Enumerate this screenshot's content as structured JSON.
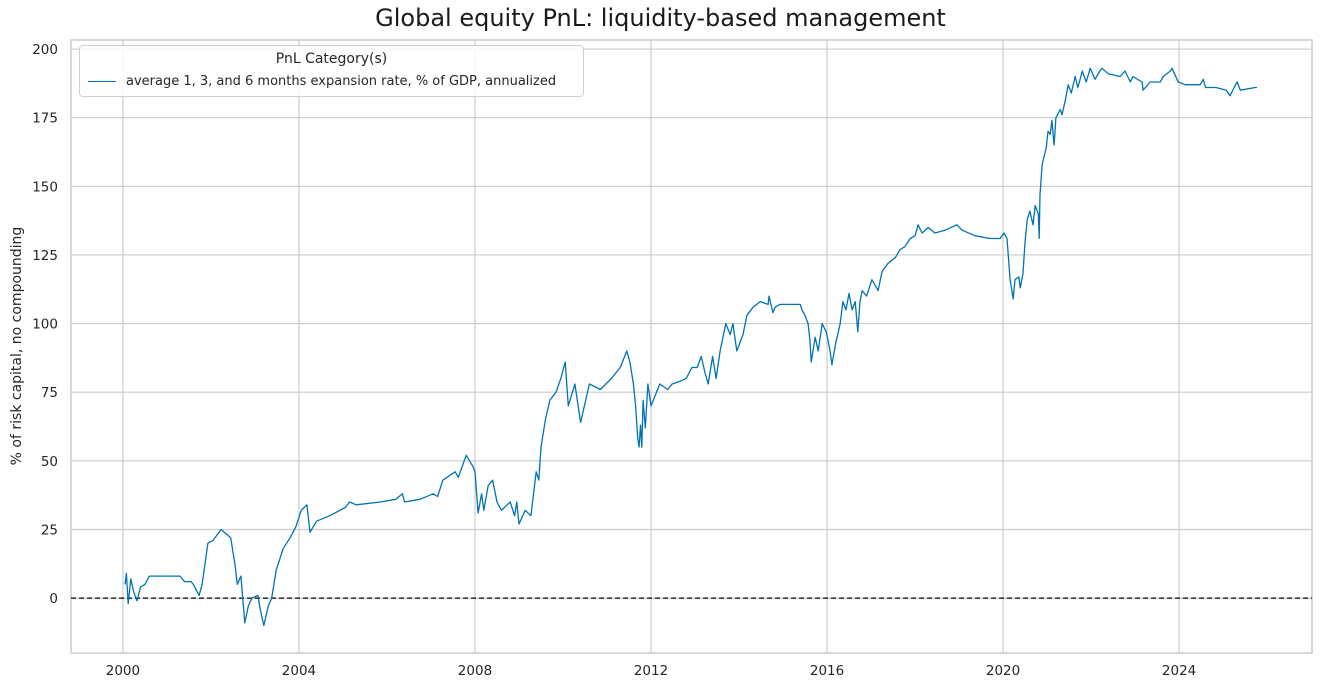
{
  "chart_data": {
    "type": "line",
    "title": "Global equity PnL: liquidity-based management",
    "xlabel": "",
    "ylabel": "% of risk capital, no compounding",
    "xlim": [
      1998.82,
      2027.02
    ],
    "ylim": [
      -20,
      203.3
    ],
    "x_ticks": [
      2000,
      2004,
      2008,
      2012,
      2016,
      2020,
      2024
    ],
    "y_ticks": [
      0,
      25,
      50,
      75,
      100,
      125,
      150,
      175,
      200
    ],
    "grid": true,
    "reference_line": {
      "y": 0,
      "style": "dashed",
      "color": "#000000"
    },
    "legend": {
      "title": "PnL Category(s)",
      "placement": "top-left"
    },
    "series": [
      {
        "name": "average 1, 3, and 6 months expansion rate, % of GDP, annualized",
        "color": "#0173b2",
        "points": [
          [
            2000.05,
            5
          ],
          [
            2000.08,
            9
          ],
          [
            2000.12,
            -2
          ],
          [
            2000.18,
            7
          ],
          [
            2000.25,
            2
          ],
          [
            2000.32,
            -1
          ],
          [
            2000.4,
            4
          ],
          [
            2000.5,
            5
          ],
          [
            2000.6,
            8
          ],
          [
            2001.0,
            8
          ],
          [
            2001.3,
            8
          ],
          [
            2001.4,
            6
          ],
          [
            2001.55,
            6
          ],
          [
            2001.6,
            5
          ],
          [
            2001.73,
            1
          ],
          [
            2001.8,
            5
          ],
          [
            2001.93,
            20
          ],
          [
            2002.05,
            21
          ],
          [
            2002.23,
            25
          ],
          [
            2002.45,
            22
          ],
          [
            2002.55,
            12
          ],
          [
            2002.6,
            5
          ],
          [
            2002.68,
            8
          ],
          [
            2002.77,
            -9
          ],
          [
            2002.85,
            -3
          ],
          [
            2002.93,
            0
          ],
          [
            2003.07,
            1
          ],
          [
            2003.12,
            -4
          ],
          [
            2003.2,
            -10
          ],
          [
            2003.3,
            -3
          ],
          [
            2003.38,
            0
          ],
          [
            2003.48,
            10
          ],
          [
            2003.64,
            18
          ],
          [
            2003.8,
            22
          ],
          [
            2003.93,
            26
          ],
          [
            2004.05,
            32
          ],
          [
            2004.18,
            34
          ],
          [
            2004.25,
            24
          ],
          [
            2004.4,
            28
          ],
          [
            2004.7,
            30
          ],
          [
            2005.05,
            33
          ],
          [
            2005.15,
            35
          ],
          [
            2005.3,
            34
          ],
          [
            2005.85,
            35
          ],
          [
            2006.2,
            36
          ],
          [
            2006.35,
            38
          ],
          [
            2006.4,
            35
          ],
          [
            2006.75,
            36
          ],
          [
            2007.05,
            38
          ],
          [
            2007.15,
            37
          ],
          [
            2007.27,
            43
          ],
          [
            2007.55,
            46
          ],
          [
            2007.62,
            44
          ],
          [
            2007.8,
            52
          ],
          [
            2007.95,
            48
          ],
          [
            2008.0,
            46
          ],
          [
            2008.07,
            31
          ],
          [
            2008.15,
            38
          ],
          [
            2008.2,
            32
          ],
          [
            2008.3,
            41
          ],
          [
            2008.4,
            43
          ],
          [
            2008.5,
            35
          ],
          [
            2008.6,
            32
          ],
          [
            2008.8,
            35
          ],
          [
            2008.9,
            30
          ],
          [
            2008.95,
            35
          ],
          [
            2009.0,
            27
          ],
          [
            2009.14,
            32
          ],
          [
            2009.27,
            30
          ],
          [
            2009.39,
            46
          ],
          [
            2009.45,
            43
          ],
          [
            2009.5,
            55
          ],
          [
            2009.6,
            65
          ],
          [
            2009.7,
            72
          ],
          [
            2009.84,
            75
          ],
          [
            2009.95,
            80
          ],
          [
            2010.05,
            86
          ],
          [
            2010.12,
            70
          ],
          [
            2010.27,
            78
          ],
          [
            2010.4,
            64
          ],
          [
            2010.6,
            78
          ],
          [
            2010.85,
            76
          ],
          [
            2011.1,
            80
          ],
          [
            2011.3,
            84
          ],
          [
            2011.45,
            90
          ],
          [
            2011.52,
            86
          ],
          [
            2011.6,
            78
          ],
          [
            2011.65,
            70
          ],
          [
            2011.7,
            58
          ],
          [
            2011.73,
            55
          ],
          [
            2011.76,
            63
          ],
          [
            2011.79,
            55
          ],
          [
            2011.82,
            72
          ],
          [
            2011.87,
            62
          ],
          [
            2011.93,
            78
          ],
          [
            2012.0,
            70
          ],
          [
            2012.1,
            74
          ],
          [
            2012.2,
            78
          ],
          [
            2012.38,
            76
          ],
          [
            2012.48,
            78
          ],
          [
            2012.66,
            79
          ],
          [
            2012.8,
            80
          ],
          [
            2012.93,
            84
          ],
          [
            2013.05,
            84
          ],
          [
            2013.14,
            88
          ],
          [
            2013.23,
            82
          ],
          [
            2013.3,
            78
          ],
          [
            2013.4,
            88
          ],
          [
            2013.48,
            80
          ],
          [
            2013.57,
            90
          ],
          [
            2013.7,
            100
          ],
          [
            2013.8,
            96
          ],
          [
            2013.86,
            100
          ],
          [
            2013.95,
            90
          ],
          [
            2014.09,
            96
          ],
          [
            2014.18,
            103
          ],
          [
            2014.32,
            106
          ],
          [
            2014.48,
            108
          ],
          [
            2014.66,
            107
          ],
          [
            2014.68,
            110
          ],
          [
            2014.77,
            104
          ],
          [
            2014.82,
            106
          ],
          [
            2014.93,
            107
          ],
          [
            2015.39,
            107
          ],
          [
            2015.43,
            105
          ],
          [
            2015.5,
            103
          ],
          [
            2015.57,
            100
          ],
          [
            2015.61,
            94
          ],
          [
            2015.64,
            86
          ],
          [
            2015.73,
            95
          ],
          [
            2015.8,
            90
          ],
          [
            2015.89,
            100
          ],
          [
            2015.98,
            97
          ],
          [
            2016.07,
            90
          ],
          [
            2016.11,
            85
          ],
          [
            2016.2,
            93
          ],
          [
            2016.3,
            100
          ],
          [
            2016.36,
            108
          ],
          [
            2016.43,
            105
          ],
          [
            2016.5,
            111
          ],
          [
            2016.57,
            105
          ],
          [
            2016.64,
            108
          ],
          [
            2016.7,
            97
          ],
          [
            2016.75,
            108
          ],
          [
            2016.8,
            112
          ],
          [
            2016.9,
            110
          ],
          [
            2017.02,
            116
          ],
          [
            2017.16,
            112
          ],
          [
            2017.25,
            119
          ],
          [
            2017.39,
            122
          ],
          [
            2017.55,
            124
          ],
          [
            2017.66,
            127
          ],
          [
            2017.77,
            128
          ],
          [
            2017.89,
            131
          ],
          [
            2018.0,
            132
          ],
          [
            2018.07,
            136
          ],
          [
            2018.16,
            133
          ],
          [
            2018.3,
            135
          ],
          [
            2018.45,
            133
          ],
          [
            2018.68,
            134
          ],
          [
            2018.95,
            136
          ],
          [
            2019.07,
            134
          ],
          [
            2019.36,
            132
          ],
          [
            2019.7,
            131
          ],
          [
            2019.93,
            131
          ],
          [
            2020.02,
            133
          ],
          [
            2020.09,
            131
          ],
          [
            2020.16,
            116
          ],
          [
            2020.23,
            109
          ],
          [
            2020.27,
            116
          ],
          [
            2020.36,
            117
          ],
          [
            2020.39,
            113
          ],
          [
            2020.45,
            118
          ],
          [
            2020.5,
            130
          ],
          [
            2020.55,
            138
          ],
          [
            2020.61,
            141
          ],
          [
            2020.68,
            136
          ],
          [
            2020.73,
            143
          ],
          [
            2020.8,
            140
          ],
          [
            2020.82,
            131
          ],
          [
            2020.84,
            147
          ],
          [
            2020.89,
            158
          ],
          [
            2020.98,
            164
          ],
          [
            2021.02,
            170
          ],
          [
            2021.07,
            169
          ],
          [
            2021.11,
            174
          ],
          [
            2021.16,
            165
          ],
          [
            2021.2,
            175
          ],
          [
            2021.3,
            178
          ],
          [
            2021.34,
            176
          ],
          [
            2021.41,
            181
          ],
          [
            2021.48,
            187
          ],
          [
            2021.55,
            184
          ],
          [
            2021.64,
            190
          ],
          [
            2021.7,
            186
          ],
          [
            2021.8,
            192
          ],
          [
            2021.89,
            188
          ],
          [
            2021.98,
            193
          ],
          [
            2022.09,
            189
          ],
          [
            2022.2,
            192
          ],
          [
            2022.25,
            193
          ],
          [
            2022.39,
            191
          ],
          [
            2022.66,
            190
          ],
          [
            2022.77,
            192
          ],
          [
            2022.89,
            188
          ],
          [
            2022.95,
            190
          ],
          [
            2023.16,
            188
          ],
          [
            2023.18,
            185
          ],
          [
            2023.34,
            188
          ],
          [
            2023.57,
            188
          ],
          [
            2023.64,
            190
          ],
          [
            2023.8,
            192
          ],
          [
            2023.84,
            193
          ],
          [
            2023.98,
            188
          ],
          [
            2024.14,
            187
          ],
          [
            2024.48,
            187
          ],
          [
            2024.55,
            189
          ],
          [
            2024.6,
            186
          ],
          [
            2024.84,
            186
          ],
          [
            2025.07,
            185
          ],
          [
            2025.16,
            183
          ],
          [
            2025.25,
            186
          ],
          [
            2025.32,
            188
          ],
          [
            2025.39,
            185
          ],
          [
            2025.73,
            186
          ],
          [
            2025.77,
            186
          ]
        ]
      }
    ]
  }
}
